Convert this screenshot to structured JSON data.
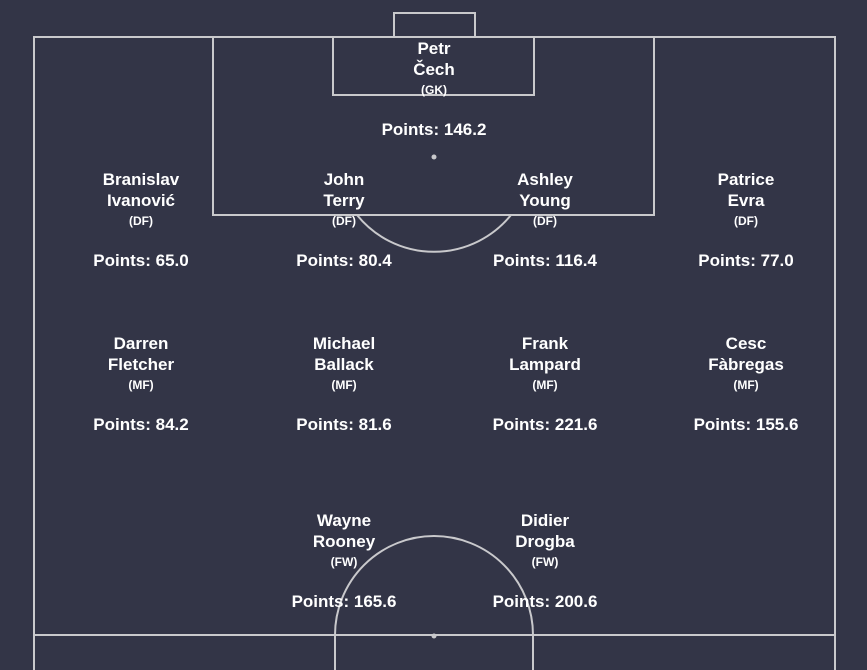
{
  "colors": {
    "background": "#333547",
    "pitch_lines": "#c9c9cc",
    "text": "#ffffff"
  },
  "players": [
    {
      "first": "Petr",
      "last": "Čech",
      "pos": "(GK)",
      "points": "Points: 146.2"
    },
    {
      "first": "Branislav",
      "last": "Ivanović",
      "pos": "(DF)",
      "points": "Points: 65.0"
    },
    {
      "first": "John",
      "last": "Terry",
      "pos": "(DF)",
      "points": "Points: 80.4"
    },
    {
      "first": "Ashley",
      "last": "Young",
      "pos": "(DF)",
      "points": "Points: 116.4"
    },
    {
      "first": "Patrice",
      "last": "Evra",
      "pos": "(DF)",
      "points": "Points: 77.0"
    },
    {
      "first": "Darren",
      "last": "Fletcher",
      "pos": "(MF)",
      "points": "Points: 84.2"
    },
    {
      "first": "Michael",
      "last": "Ballack",
      "pos": "(MF)",
      "points": "Points: 81.6"
    },
    {
      "first": "Frank",
      "last": "Lampard",
      "pos": "(MF)",
      "points": "Points: 221.6"
    },
    {
      "first": "Cesc",
      "last": "Fàbregas",
      "pos": "(MF)",
      "points": "Points: 155.6"
    },
    {
      "first": "Wayne",
      "last": "Rooney",
      "pos": "(FW)",
      "points": "Points: 165.6"
    },
    {
      "first": "Didier",
      "last": "Drogba",
      "pos": "(FW)",
      "points": "Points: 200.6"
    }
  ]
}
